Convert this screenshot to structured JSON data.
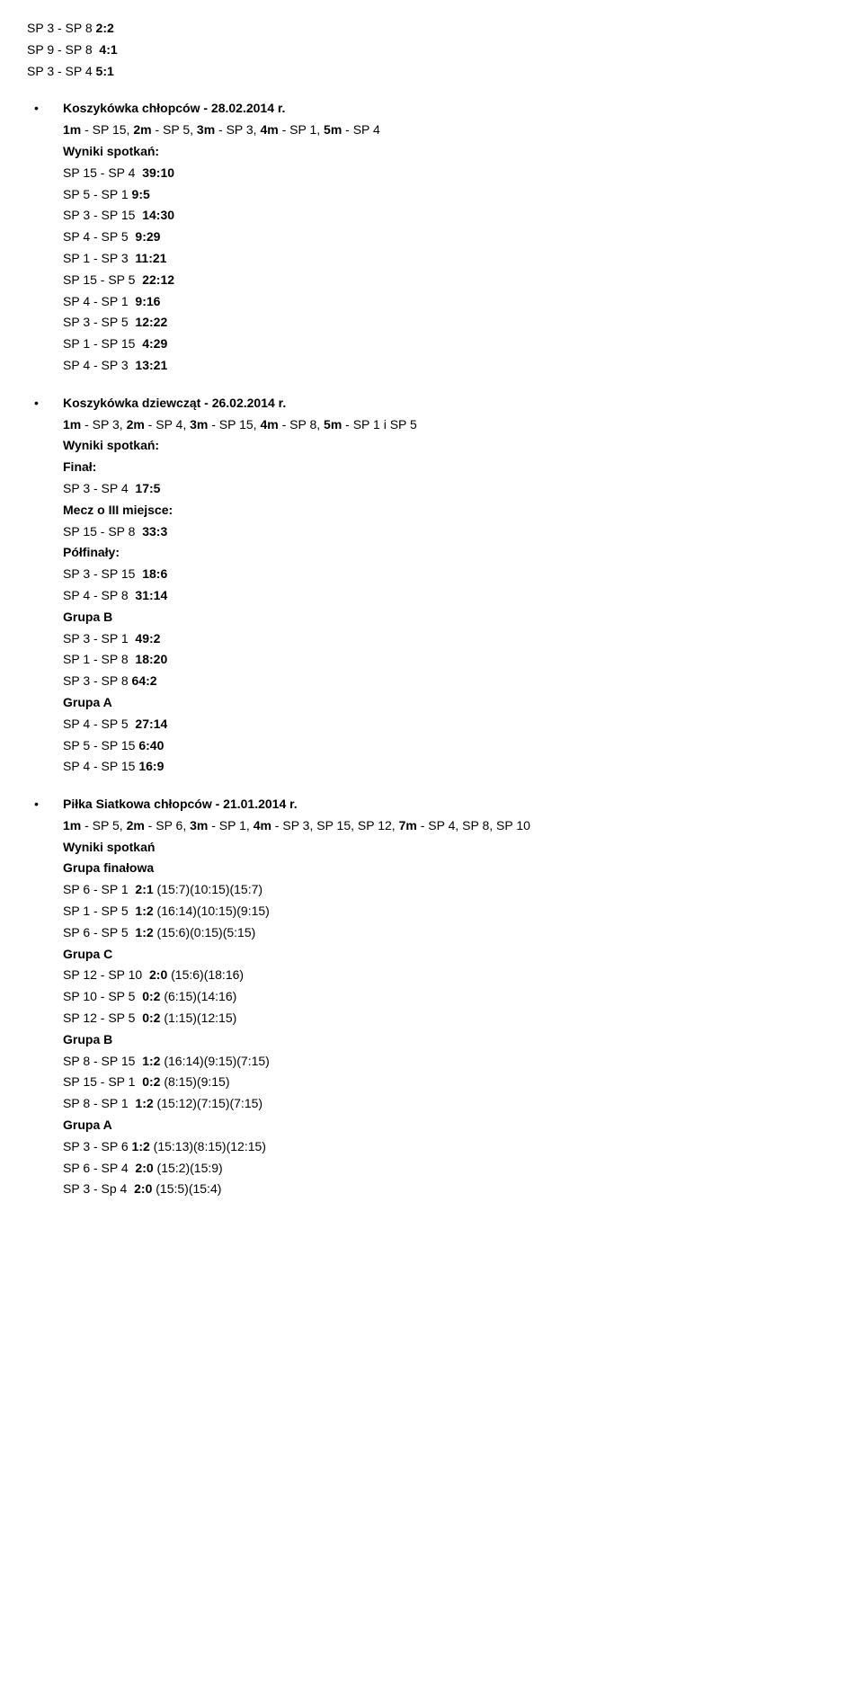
{
  "pre": [
    [
      {
        "t": "SP 3 - SP 8 "
      },
      {
        "t": "2:2",
        "b": true
      }
    ],
    [
      {
        "t": "SP 9 - SP 8  "
      },
      {
        "t": "4:1",
        "b": true
      }
    ],
    [
      {
        "t": "SP 3 - SP 4 "
      },
      {
        "t": "5:1",
        "b": true
      }
    ]
  ],
  "sections": [
    {
      "title": "Koszykówka chłopców - 28.02.2014 r.",
      "lines": [
        [
          {
            "t": "1m",
            "b": true
          },
          {
            "t": " - SP 15, "
          },
          {
            "t": "2m",
            "b": true
          },
          {
            "t": " - SP 5, "
          },
          {
            "t": "3m",
            "b": true
          },
          {
            "t": " - SP 3, "
          },
          {
            "t": "4m",
            "b": true
          },
          {
            "t": " - SP 1, "
          },
          {
            "t": "5m",
            "b": true
          },
          {
            "t": " - SP 4"
          }
        ],
        [
          {
            "t": "Wyniki spotkań:",
            "b": true
          }
        ],
        [
          {
            "t": "SP 15 - SP 4  "
          },
          {
            "t": "39:10",
            "b": true
          }
        ],
        [
          {
            "t": "SP 5 - SP 1 "
          },
          {
            "t": "9:5",
            "b": true
          }
        ],
        [
          {
            "t": "SP 3 - SP 15  "
          },
          {
            "t": "14:30",
            "b": true
          }
        ],
        [
          {
            "t": "SP 4 - SP 5  "
          },
          {
            "t": "9:29",
            "b": true
          }
        ],
        [
          {
            "t": "SP 1 - SP 3  "
          },
          {
            "t": "11:21",
            "b": true
          }
        ],
        [
          {
            "t": "SP 15 - SP 5  "
          },
          {
            "t": "22:12",
            "b": true
          }
        ],
        [
          {
            "t": "SP 4 - SP 1  "
          },
          {
            "t": "9:16",
            "b": true
          }
        ],
        [
          {
            "t": "SP 3 - SP 5  "
          },
          {
            "t": "12:22",
            "b": true
          }
        ],
        [
          {
            "t": "SP 1 - SP 15  "
          },
          {
            "t": "4:29",
            "b": true
          }
        ],
        [
          {
            "t": "SP 4 - SP 3  "
          },
          {
            "t": "13:21",
            "b": true
          }
        ]
      ]
    },
    {
      "title": "Koszykówka dziewcząt - 26.02.2014 r.",
      "lines": [
        [
          {
            "t": "1m",
            "b": true
          },
          {
            "t": " - SP 3, "
          },
          {
            "t": "2m",
            "b": true
          },
          {
            "t": " - SP 4, "
          },
          {
            "t": "3m",
            "b": true
          },
          {
            "t": " - SP 15, "
          },
          {
            "t": "4m",
            "b": true
          },
          {
            "t": " - SP 8, "
          },
          {
            "t": "5m",
            "b": true
          },
          {
            "t": " - SP 1 i SP 5"
          }
        ],
        [
          {
            "t": "Wyniki spotkań:",
            "b": true
          }
        ],
        [
          {
            "t": "Finał:",
            "b": true
          }
        ],
        [
          {
            "t": "SP 3 - SP 4  "
          },
          {
            "t": "17:5",
            "b": true
          }
        ],
        [
          {
            "t": "Mecz o III miejsce:",
            "b": true
          }
        ],
        [
          {
            "t": "SP 15 - SP 8  "
          },
          {
            "t": "33:3",
            "b": true
          }
        ],
        [
          {
            "t": "Półfinały:",
            "b": true
          }
        ],
        [
          {
            "t": "SP 3 - SP 15  "
          },
          {
            "t": "18:6",
            "b": true
          }
        ],
        [
          {
            "t": "SP 4 - SP 8  "
          },
          {
            "t": "31:14",
            "b": true
          }
        ],
        [
          {
            "t": "Grupa B",
            "b": true
          }
        ],
        [
          {
            "t": "SP 3 - SP 1  "
          },
          {
            "t": "49:2",
            "b": true
          }
        ],
        [
          {
            "t": "SP 1 - SP 8  "
          },
          {
            "t": "18:20",
            "b": true
          }
        ],
        [
          {
            "t": "SP 3 - SP 8 "
          },
          {
            "t": "64:2",
            "b": true
          }
        ],
        [
          {
            "t": "Grupa A",
            "b": true
          }
        ],
        [
          {
            "t": "SP 4 - SP 5  "
          },
          {
            "t": "27:14",
            "b": true
          }
        ],
        [
          {
            "t": "SP 5 - SP 15 "
          },
          {
            "t": "6:40",
            "b": true
          }
        ],
        [
          {
            "t": "SP 4 - SP 15 "
          },
          {
            "t": "16:9",
            "b": true
          }
        ]
      ]
    },
    {
      "title": "Piłka Siatkowa chłopców - 21.01.2014 r.",
      "lines": [
        [
          {
            "t": "1m",
            "b": true
          },
          {
            "t": " - SP 5, "
          },
          {
            "t": "2m",
            "b": true
          },
          {
            "t": " - SP 6, "
          },
          {
            "t": "3m",
            "b": true
          },
          {
            "t": " - SP 1, "
          },
          {
            "t": "4m",
            "b": true
          },
          {
            "t": " - SP 3, SP 15, SP 12, "
          },
          {
            "t": "7m",
            "b": true
          },
          {
            "t": " - SP 4, SP 8, SP 10"
          }
        ],
        [
          {
            "t": "Wyniki spotkań",
            "b": true
          }
        ],
        [
          {
            "t": "Grupa finałowa",
            "b": true
          }
        ],
        [
          {
            "t": "SP 6 - SP 1  "
          },
          {
            "t": "2:1",
            "b": true
          },
          {
            "t": " (15:7)(10:15)(15:7)"
          }
        ],
        [
          {
            "t": "SP 1 - SP 5  "
          },
          {
            "t": "1:2",
            "b": true
          },
          {
            "t": " (16:14)(10:15)(9:15)"
          }
        ],
        [
          {
            "t": "SP 6 - SP 5  "
          },
          {
            "t": "1:2",
            "b": true
          },
          {
            "t": " (15:6)(0:15)(5:15)"
          }
        ],
        [
          {
            "t": "Grupa C",
            "b": true
          }
        ],
        [
          {
            "t": "SP 12 - SP 10  "
          },
          {
            "t": "2:0",
            "b": true
          },
          {
            "t": " (15:6)(18:16)"
          }
        ],
        [
          {
            "t": "SP 10 - SP 5  "
          },
          {
            "t": "0:2",
            "b": true
          },
          {
            "t": " (6:15)(14:16)"
          }
        ],
        [
          {
            "t": "SP 12 - SP 5  "
          },
          {
            "t": "0:2",
            "b": true
          },
          {
            "t": " (1:15)(12:15)"
          }
        ],
        [
          {
            "t": "Grupa B",
            "b": true
          }
        ],
        [
          {
            "t": "SP 8 - SP 15  "
          },
          {
            "t": "1:2",
            "b": true
          },
          {
            "t": " (16:14)(9:15)(7:15)"
          }
        ],
        [
          {
            "t": "SP 15 - SP 1  "
          },
          {
            "t": "0:2",
            "b": true
          },
          {
            "t": " (8:15)(9:15)"
          }
        ],
        [
          {
            "t": "SP 8 - SP 1  "
          },
          {
            "t": "1:2",
            "b": true
          },
          {
            "t": " (15:12)(7:15)(7:15)"
          }
        ],
        [
          {
            "t": "Grupa A",
            "b": true
          }
        ],
        [
          {
            "t": "SP 3 - SP 6 "
          },
          {
            "t": "1:2",
            "b": true
          },
          {
            "t": " (15:13)(8:15)(12:15)"
          }
        ],
        [
          {
            "t": "SP 6 - SP 4  "
          },
          {
            "t": "2:0",
            "b": true
          },
          {
            "t": " (15:2)(15:9)"
          }
        ],
        [
          {
            "t": "SP 3 - Sp 4  "
          },
          {
            "t": "2:0",
            "b": true
          },
          {
            "t": " (15:5)(15:4)"
          }
        ]
      ]
    }
  ]
}
